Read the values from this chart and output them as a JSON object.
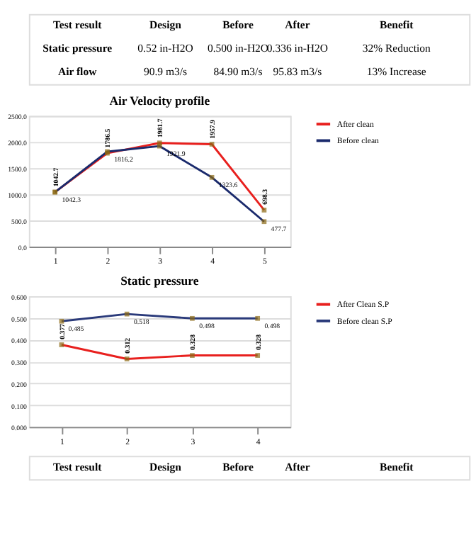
{
  "chart_data": [
    {
      "type": "other",
      "annotations": [
        "Test result",
        "Design",
        "Before",
        "After",
        "Benefit",
        "Static pressure",
        "0.52 in-H2O",
        "0.500 in-H2O",
        "0.336 in-H2O",
        "32% Reduction",
        "Air flow",
        "90.9 m3/s",
        "84.90 m3/s",
        "95.83 m3/s",
        "13% Increase"
      ]
    },
    {
      "type": "line",
      "title": "Air Velocity profile",
      "categories": [
        "1",
        "2",
        "3",
        "4",
        "5"
      ],
      "ylim": [
        0,
        2500
      ],
      "yticks": [
        {
          "value": 0,
          "label": "0.0"
        },
        {
          "value": 500,
          "label": "500.0"
        },
        {
          "value": 1000,
          "label": "1000.0"
        },
        {
          "value": 1500,
          "label": "1500.0"
        },
        {
          "value": 2000,
          "label": "2000.0"
        },
        {
          "value": 2500,
          "label": "2500.0"
        }
      ],
      "grid": "y",
      "legend": "right",
      "marker": "square",
      "data_labels": true,
      "series": [
        {
          "name": "After clean",
          "color": "#e8201e",
          "values": [
            1042.7,
            1786.5,
            1981.7,
            1957.9,
            698.3
          ]
        },
        {
          "name": "Before clean",
          "color": "#1a2a6c",
          "values": [
            1042.3,
            1816.2,
            1921.9,
            1323.6,
            477.7
          ]
        }
      ]
    },
    {
      "type": "line",
      "title": "Static pressure",
      "categories": [
        "1",
        "2",
        "3",
        "4"
      ],
      "ylim": [
        0,
        0.6
      ],
      "yticks": [
        {
          "value": 0,
          "label": "0.000"
        },
        {
          "value": 0.1,
          "label": "0.100"
        },
        {
          "value": 0.2,
          "label": "0.200"
        },
        {
          "value": 0.3,
          "label": "0.300"
        },
        {
          "value": 0.4,
          "label": "0.400"
        },
        {
          "value": 0.5,
          "label": "0.500"
        },
        {
          "value": 0.6,
          "label": "0.600"
        }
      ],
      "grid": "y",
      "legend": "right",
      "marker": "square",
      "data_labels": true,
      "series": [
        {
          "name": "After Clean S.P",
          "color": "#e8201e",
          "values": [
            0.377,
            0.312,
            0.328,
            0.328
          ]
        },
        {
          "name": "Before clean S.P",
          "color": "#2a3a7a",
          "values": [
            0.485,
            0.518,
            0.498,
            0.498
          ]
        }
      ]
    },
    {
      "type": "other",
      "annotations": [
        "Test result",
        "Design",
        "Before",
        "After",
        "Benefit"
      ]
    }
  ]
}
